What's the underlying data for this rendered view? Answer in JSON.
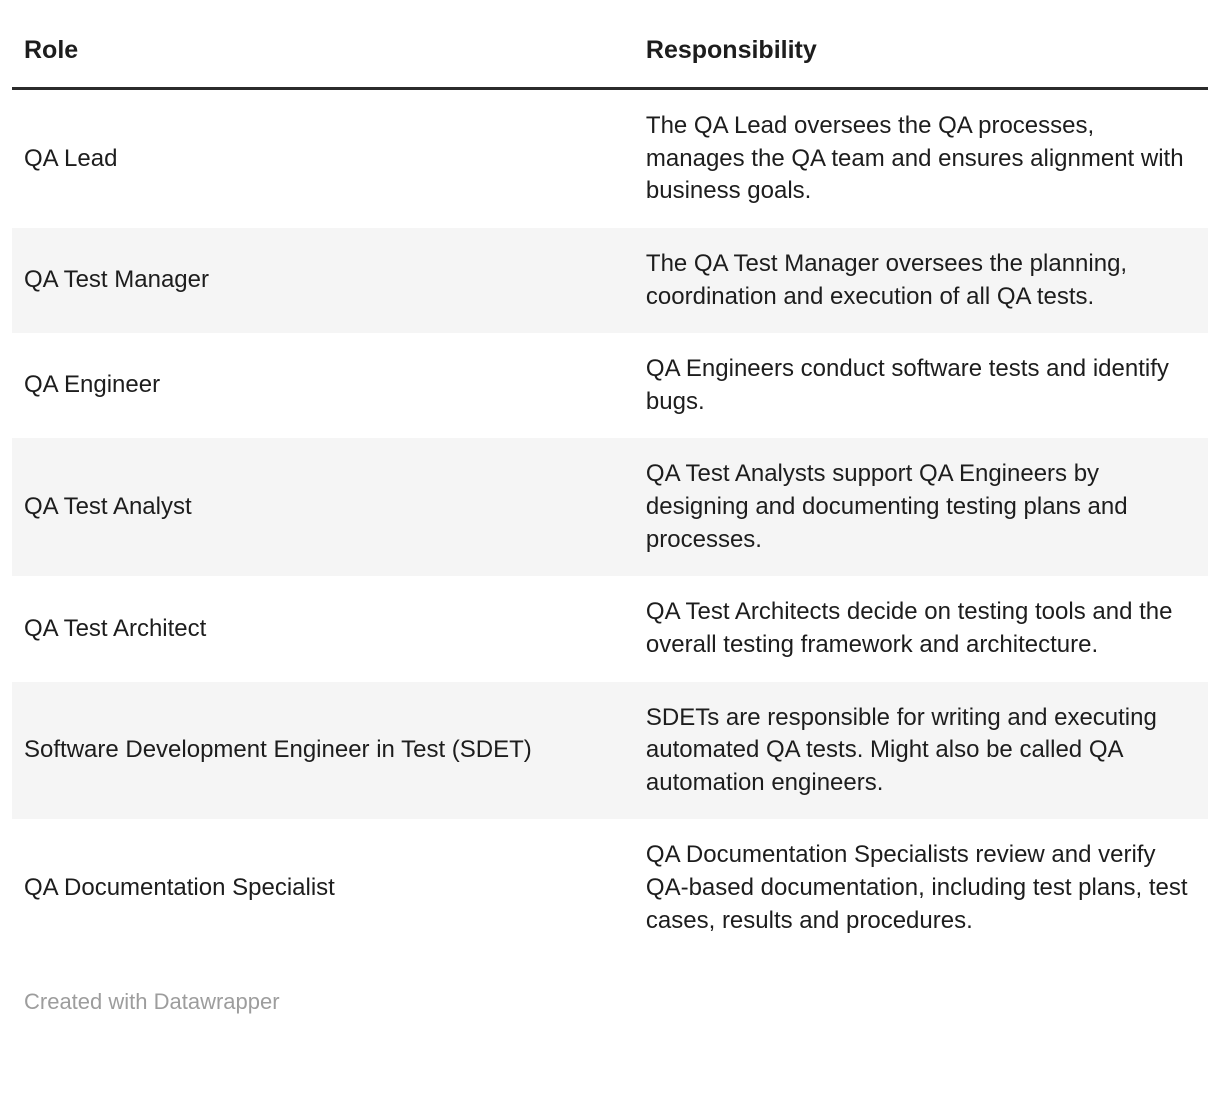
{
  "chart_data": {
    "type": "table",
    "columns": [
      "Role",
      "Responsibility"
    ],
    "rows": [
      {
        "role": "QA Lead",
        "responsibility": "The QA Lead oversees the QA processes, manages the QA team and ensures alignment with business goals."
      },
      {
        "role": "QA Test Manager",
        "responsibility": "The QA Test Manager oversees the planning, coordination and execution of all QA tests."
      },
      {
        "role": "QA Engineer",
        "responsibility": "QA Engineers conduct software tests and identify bugs."
      },
      {
        "role": "QA Test Analyst",
        "responsibility": "QA Test Analysts support QA Engineers by designing and documenting testing plans and processes."
      },
      {
        "role": "QA Test Architect",
        "responsibility": "QA Test Architects decide on testing tools and the overall testing framework and architecture."
      },
      {
        "role": "Software Development Engineer in Test (SDET)",
        "responsibility": "SDETs are responsible for writing and executing automated QA tests. Might also be called QA automation engineers."
      },
      {
        "role": "QA Documentation Specialist",
        "responsibility": "QA Documentation Specialists review and verify QA-based documentation, including test plans, test cases, results and procedures."
      }
    ],
    "layout": {
      "alternating_rows": true,
      "header_rule_color": "#2b2b2b",
      "row_alt_color": "#f5f5f5"
    }
  },
  "footer": {
    "credit": "Created with Datawrapper"
  }
}
